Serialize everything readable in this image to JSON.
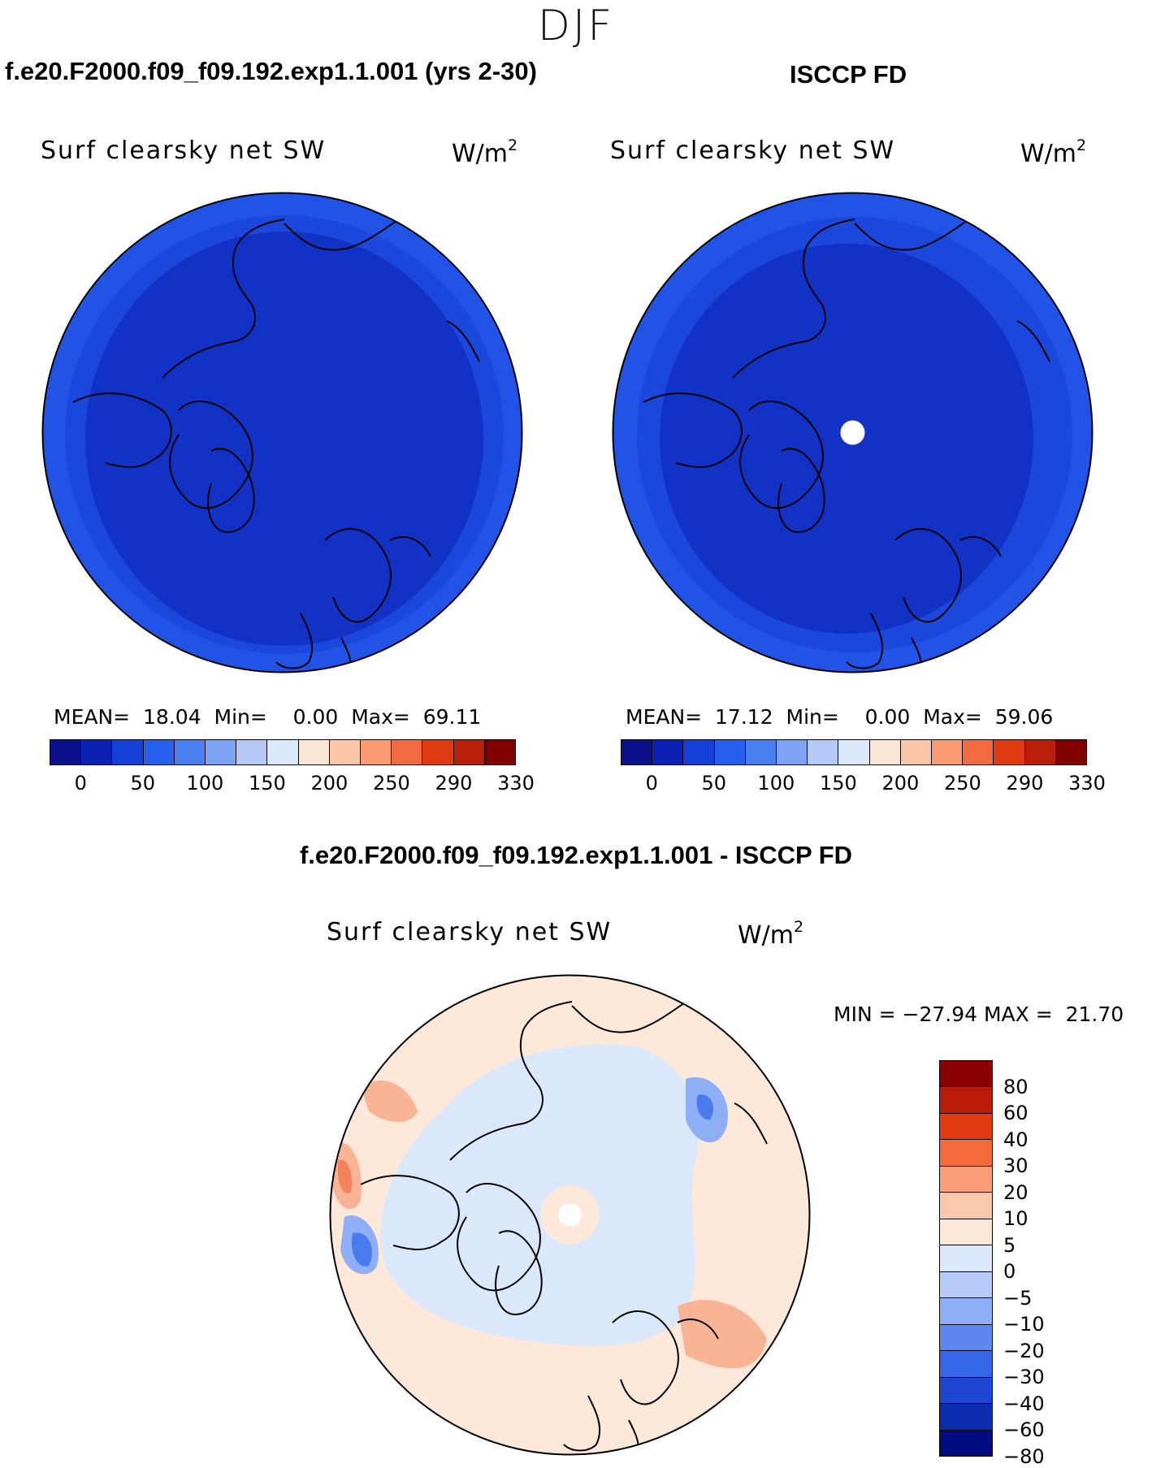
{
  "season": "DJF",
  "panels": [
    {
      "case_title": "f.e20.F2000.f09_f09.192.exp1.1.001 (yrs 2-30)",
      "variable": "Surf clearsky net SW",
      "units_base": "W/m",
      "units_exp": "2",
      "stats": {
        "mean_label": "MEAN=",
        "mean": "18.04",
        "min_label": "Min=",
        "min": "0.00",
        "max_label": "Max=",
        "max": "69.11"
      }
    },
    {
      "case_title": "ISCCP FD",
      "variable": "Surf clearsky net SW",
      "units_base": "W/m",
      "units_exp": "2",
      "stats": {
        "mean_label": "MEAN=",
        "mean": "17.12",
        "min_label": "Min=",
        "min": "0.00",
        "max_label": "Max=",
        "max": "59.06"
      }
    }
  ],
  "abs_colorbar": {
    "colors": [
      "#0a0f8c",
      "#0c22b4",
      "#1440d8",
      "#2860ee",
      "#4a7ff2",
      "#7ea3f4",
      "#b5caf6",
      "#dbe7fb",
      "#fce7d7",
      "#fcc6a8",
      "#f99a72",
      "#f26a40",
      "#e03a12",
      "#b91f08",
      "#800000"
    ],
    "labels": [
      "0",
      "50",
      "100",
      "150",
      "200",
      "250",
      "290",
      "330"
    ]
  },
  "diff_panel": {
    "title": "f.e20.F2000.f09_f09.192.exp1.1.001 - ISCCP FD",
    "variable": "Surf clearsky net SW",
    "units_base": "W/m",
    "units_exp": "2",
    "stats": {
      "min_label": "MIN =",
      "min": "−27.94",
      "max_label": "MAX =",
      "max": "21.70"
    }
  },
  "diff_colorbar": {
    "colors": [
      "#8a0000",
      "#b81c08",
      "#e03a10",
      "#f46a3a",
      "#f99e78",
      "#fcc8ac",
      "#fde8da",
      "#dbe8fb",
      "#b6cbf8",
      "#8eaef5",
      "#5e88ef",
      "#3566e6",
      "#1c46d2",
      "#0c2cb0",
      "#000c80"
    ],
    "labels": [
      "80",
      "60",
      "40",
      "30",
      "20",
      "10",
      "5",
      "0",
      "−5",
      "−10",
      "−20",
      "−30",
      "−40",
      "−60",
      "−80"
    ]
  },
  "map_colors": {
    "abs_outer": "#2153e6",
    "abs_mid": "#1c47dc",
    "abs_inner": "#1232c6",
    "diff_base": "#fde8da",
    "diff_neg_light": "#dbe8fb",
    "diff_neg_mid": "#8eaef5",
    "diff_neg_strong": "#4a7aee",
    "diff_pos_mid": "#f9b496",
    "diff_pos_strong": "#f4825a"
  }
}
